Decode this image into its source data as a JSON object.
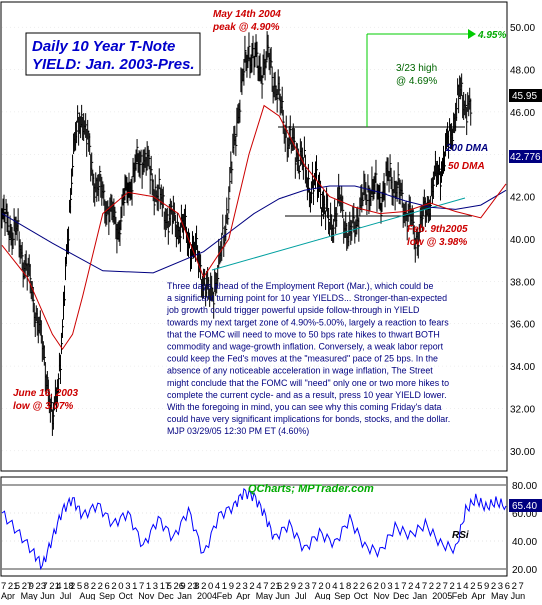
{
  "chart_data": [
    {
      "type": "bar",
      "subtype": "daily OHLC with moving averages",
      "title_line1": "Daily 10 Year T-Note",
      "title_line2": "YIELD: Jan. 2003-Pres.",
      "ylim": [
        29,
        51
      ],
      "yticks": [
        "50.00",
        "48.00",
        "46.00",
        "44.00",
        "42.00",
        "40.00",
        "38.00",
        "36.00",
        "34.00",
        "32.00",
        "30.00",
        "28.00"
      ],
      "last_value": "45.95",
      "dma200_value": "42.776",
      "series": [
        {
          "name": "200 DMA",
          "color": "#000080",
          "x": [
            0,
            10,
            20,
            30,
            40,
            45,
            50,
            55,
            60,
            65,
            70,
            75,
            80,
            85,
            90,
            95,
            100
          ],
          "values": [
            41.2,
            39.8,
            38.5,
            38.4,
            39.4,
            40.3,
            41.2,
            41.9,
            42.3,
            42.5,
            42.5,
            42.2,
            41.8,
            41.5,
            41.4,
            41.6,
            42.3
          ]
        },
        {
          "name": "50 DMA",
          "color": "#cc0000",
          "x": [
            0,
            5,
            10,
            12,
            14,
            16,
            20,
            25,
            30,
            35,
            40,
            45,
            49,
            52,
            55,
            60,
            65,
            70,
            75,
            80,
            85,
            90,
            95,
            100
          ],
          "values": [
            39.7,
            38.2,
            35.5,
            34.8,
            35.5,
            37.3,
            41.2,
            42.2,
            42.0,
            41.2,
            38.2,
            40.0,
            44.0,
            46.3,
            45.8,
            43.5,
            42.0,
            41.5,
            41.2,
            41.3,
            41.7,
            41.3,
            41.0,
            42.6
          ]
        }
      ],
      "annotations": [
        {
          "text": "May 14th 2004",
          "color": "#cc0000"
        },
        {
          "text": "peak @ 4.90%",
          "color": "#cc0000"
        },
        {
          "text": "3/23 high",
          "color": "#006600"
        },
        {
          "text": "@ 4.69%",
          "color": "#006600"
        },
        {
          "text": "4.95%",
          "color": "#00aa00"
        },
        {
          "text": "200 DMA",
          "color": "#000080"
        },
        {
          "text": "50 DMA",
          "color": "#cc0000"
        },
        {
          "text": "Feb. 9th2005",
          "color": "#cc0000"
        },
        {
          "text": "low @ 3.98%",
          "color": "#cc0000"
        },
        {
          "text": "June 16, 2003",
          "color": "#cc0000"
        },
        {
          "text": "low @ 3.07%",
          "color": "#cc0000"
        }
      ],
      "commentary": [
        "Three days ahead of the Employment Report (Mar.), which could be",
        "a significant turning point for 10 year YIELDS... Stronger-than-expected",
        "job growth could trigger powerful upside follow-through in YIELD",
        "towards my next target zone of 4.90%-5.00%, largely a reaction to fears",
        "that the FOMC will need to move to 50 bps rate hikes to thwart BOTH",
        "commodity and wage-growth inflation. Conversely, a weak labor report",
        "could keep the Fed's moves at the \"measured\" pace of 25 bps. In the",
        "absence of any noticeable acceleration in wage inflation, The Street",
        "might conclude that the FOMC will  \"need\" only one or two more hikes to",
        "complete the current cycle- and as a result, press 10 year YIELD lower.",
        "With the foregoing in mind, you can see why this coming Friday's data",
        "could have very significant implications for bonds, stocks, and the dollar.",
        "MJP 03/29/05 12:30 PM ET (4.60%)"
      ]
    },
    {
      "type": "line",
      "name": "RSI",
      "label": "RSi",
      "ylim": [
        15,
        85
      ],
      "yticks": [
        "80.00",
        "60.00",
        "40.00",
        "20.00"
      ],
      "last_value": "65.40",
      "credit": "QCharts; MPTrader.com",
      "x": [
        0,
        3,
        6,
        8,
        10,
        12,
        14,
        16,
        19,
        22,
        25,
        28,
        31,
        34,
        37,
        40,
        43,
        46,
        48,
        50,
        52,
        54,
        57,
        60,
        63,
        66,
        69,
        72,
        75,
        78,
        81,
        84,
        87,
        90,
        92,
        94,
        96,
        98,
        100
      ],
      "values": [
        60,
        47,
        33,
        22,
        42,
        62,
        70,
        58,
        66,
        52,
        60,
        36,
        56,
        42,
        62,
        30,
        58,
        65,
        75,
        72,
        60,
        42,
        52,
        34,
        46,
        38,
        56,
        36,
        32,
        50,
        44,
        52,
        38,
        34,
        62,
        70,
        64,
        68,
        65
      ]
    }
  ],
  "x_axis": {
    "day_labels": [
      "7",
      "21",
      "5",
      "27",
      "9",
      "23",
      "7",
      "21",
      "4",
      "18",
      "2",
      "5",
      "8",
      "2",
      "2",
      "6",
      "2",
      "0",
      "3",
      "1",
      "7",
      "1",
      "3",
      "17",
      "5",
      "26",
      "9",
      "23",
      "8",
      "2",
      "0",
      "4",
      "1",
      "9",
      "2",
      "3",
      "2",
      "4",
      "7",
      "21",
      "6",
      "2",
      "9",
      "2",
      "3",
      "7",
      "2",
      "0",
      "4",
      "1",
      "8",
      "2",
      "2",
      "6",
      "2",
      "0",
      "3",
      "1",
      "7",
      "2",
      "4",
      "7",
      "2",
      "2",
      "7",
      "2",
      "1",
      "4",
      "2",
      "5",
      "9",
      "2",
      "3",
      "6",
      "2",
      "7"
    ],
    "month_labels": [
      "Apr",
      "May",
      "Jun",
      "Jul",
      "Aug",
      "Sep",
      "Oct",
      "Nov",
      "Dec",
      "Jan",
      "2004",
      "Feb",
      "Apr",
      "May",
      "Jun",
      "Jul",
      "Aug",
      "Sep",
      "Oct",
      "Nov",
      "Dec",
      "Jan",
      "2005",
      "Feb",
      "Apr",
      "May",
      "Jun"
    ]
  }
}
